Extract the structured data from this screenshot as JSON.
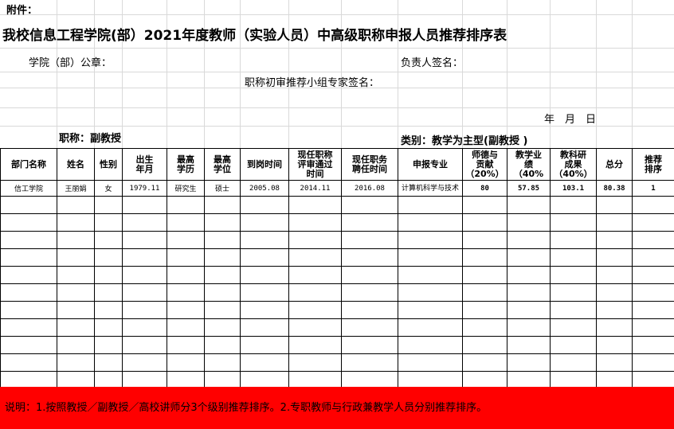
{
  "attachment_label": "附件：",
  "title": "我校信息工程学院(部）2021年度教师（实验人员）中高级职称申报人员推荐排序表",
  "seal_label": "学院（部）公章：",
  "leader_label": "负责人签名：",
  "expert_label": "职称初审推荐小组专家签名：",
  "date_label": "年　月　日",
  "rank_label": "职称：副教授",
  "category_label": "类别：教学为主型(副教授 )",
  "headers": [
    "部门名称",
    "姓名",
    "性别",
    "出生\n年月",
    "最高\n学历",
    "最高\n学位",
    "到岗时间",
    "现任职称\n评审通过\n时间",
    "现任职务\n聘任时间",
    "申报专业",
    "师德与\n贡献\n（20%）",
    "教学业\n绩\n（40%",
    "教科研\n成果\n（40%）",
    "总分",
    "推荐\n排序"
  ],
  "rows": [
    [
      "信工学院",
      "王丽娟",
      "女",
      "1979.11",
      "研究生",
      "硕士",
      "2005.08",
      "2014.11",
      "2016.08",
      "计算机科学与技术",
      "80",
      "57.85",
      "103.1",
      "80.38",
      "1"
    ]
  ],
  "note": "说明：1.按照教授／副教授／高校讲师分3个级别推荐排序。2.专职教师与行政兼教学人员分别推荐排序。",
  "colors": {
    "note_bg": "#ff0000"
  }
}
